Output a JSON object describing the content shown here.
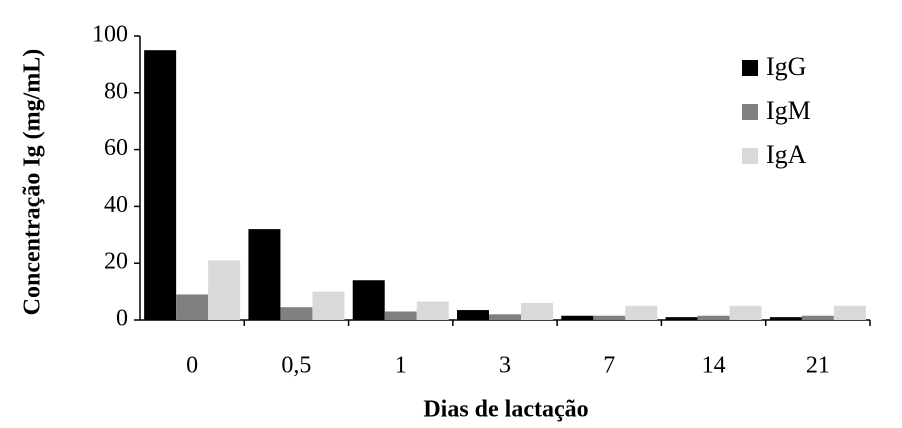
{
  "chart_data": {
    "type": "bar",
    "title": "",
    "xlabel": "Dias de lactação",
    "ylabel": "Concentração Ig (mg/mL)",
    "categories": [
      "0",
      "0,5",
      "1",
      "3",
      "7",
      "14",
      "21"
    ],
    "ylim": [
      0,
      100
    ],
    "yticks": [
      "0",
      "20",
      "40",
      "60",
      "80",
      "100"
    ],
    "grid": false,
    "legend_position": "top-right",
    "series": [
      {
        "name": "IgG",
        "color": "#000000",
        "values": [
          95,
          32,
          14,
          3.5,
          1.5,
          1,
          1
        ]
      },
      {
        "name": "IgM",
        "color": "#808080",
        "values": [
          9,
          4.5,
          3,
          2,
          1.5,
          1.5,
          1.5
        ]
      },
      {
        "name": "IgA",
        "color": "#d9d9d9",
        "values": [
          21,
          10,
          6.5,
          6,
          5,
          5,
          5
        ]
      }
    ]
  }
}
